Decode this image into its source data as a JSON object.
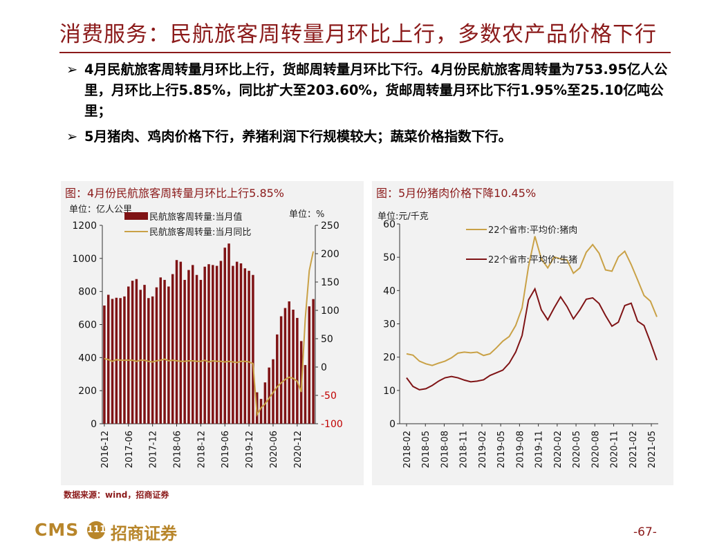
{
  "title": "消费服务：民航旅客周转量月环比上行，多数农产品价格下行",
  "bullets": [
    {
      "arrow": "➢",
      "text": "4月民航旅客周转量月环比上行，货邮周转量月环比下行。4月份民航旅客周转量为753.95亿人公里，月环比上行5.85%，同比扩大至203.60%，货邮周转量月环比下行1.95%至25.10亿吨公里；"
    },
    {
      "arrow": "➢",
      "text": "5月猪肉、鸡肉价格下行，养猪利润下行规模较大；蔬菜价格指数下行。"
    }
  ],
  "colors": {
    "accent": "#8B1A1A",
    "bar": "#7F1315",
    "line_gold": "#C9A146",
    "line_dark": "#7F1315",
    "panel_bg": "#F2F2F2",
    "logo": "#B8862B"
  },
  "source": "数据来源：wind，招商证券",
  "logo": {
    "cms": "CMS",
    "mark": "111",
    "cn": "招商证券"
  },
  "page_number": "-67-",
  "chart_data": [
    {
      "type": "bar+line",
      "title": "图：4月份民航旅客周转量月环比上行5.85%",
      "left_unit": "单位：亿人公里",
      "right_unit": "单位：%",
      "legend": [
        "民航旅客周转量:当月值",
        "民航旅客周转量:当月同比"
      ],
      "ylim": [
        0,
        1200
      ],
      "y_ticks": [
        0,
        200,
        400,
        600,
        800,
        1000,
        1200
      ],
      "y2lim": [
        -100,
        250
      ],
      "y2_ticks": [
        -100,
        -50,
        0,
        50,
        100,
        150,
        200,
        250
      ],
      "x_tick_labels": [
        "2016-12",
        "2017-06",
        "2017-12",
        "2018-06",
        "2018-12",
        "2019-06",
        "2019-12",
        "2020-06",
        "2020-12"
      ],
      "categories": [
        "2016-12",
        "2017-01",
        "2017-02",
        "2017-03",
        "2017-04",
        "2017-05",
        "2017-06",
        "2017-07",
        "2017-08",
        "2017-09",
        "2017-10",
        "2017-11",
        "2017-12",
        "2018-01",
        "2018-02",
        "2018-03",
        "2018-04",
        "2018-05",
        "2018-06",
        "2018-07",
        "2018-08",
        "2018-09",
        "2018-10",
        "2018-11",
        "2018-12",
        "2019-01",
        "2019-02",
        "2019-03",
        "2019-04",
        "2019-05",
        "2019-06",
        "2019-07",
        "2019-08",
        "2019-09",
        "2019-10",
        "2019-11",
        "2019-12",
        "2020-01",
        "2020-02",
        "2020-03",
        "2020-04",
        "2020-05",
        "2020-06",
        "2020-07",
        "2020-08",
        "2020-09",
        "2020-10",
        "2020-11",
        "2020-12",
        "2021-01",
        "2021-02",
        "2021-03",
        "2021-04"
      ],
      "series": [
        {
          "name": "民航旅客周转量:当月值",
          "values": [
            715,
            780,
            755,
            762,
            760,
            770,
            830,
            865,
            875,
            810,
            840,
            760,
            770,
            825,
            885,
            870,
            830,
            905,
            990,
            980,
            870,
            930,
            960,
            900,
            870,
            950,
            965,
            960,
            955,
            985,
            1065,
            1090,
            955,
            980,
            970,
            940,
            925,
            900,
            190,
            150,
            250,
            340,
            390,
            540,
            650,
            700,
            740,
            690,
            640,
            500,
            355,
            710,
            754
          ]
        },
        {
          "name": "民航旅客周转量:当月同比",
          "values": [
            15,
            13,
            10,
            13,
            12,
            12,
            12,
            12,
            10,
            12,
            12,
            10,
            9,
            11,
            12,
            14,
            11,
            12,
            11,
            10,
            10,
            11,
            11,
            10,
            10,
            12,
            9,
            11,
            10,
            10,
            9,
            10,
            9,
            8,
            10,
            10,
            9,
            6,
            -84,
            -72,
            -65,
            -55,
            -45,
            -35,
            -28,
            -22,
            -18,
            -20,
            -25,
            -44,
            85,
            170,
            204
          ]
        }
      ]
    },
    {
      "type": "line",
      "title": "图：5月份猪肉价格下降10.45%",
      "unit": "单位:元/千克",
      "legend": [
        "22个省市:平均价:猪肉",
        "22个省市:平均价:生猪"
      ],
      "ylim": [
        0,
        60
      ],
      "y_ticks": [
        0,
        10,
        20,
        30,
        40,
        50,
        60
      ],
      "x_tick_labels": [
        "2018-02",
        "2018-05",
        "2018-08",
        "2018-11",
        "2019-02",
        "2019-05",
        "2019-08",
        "2019-11",
        "2020-02",
        "2020-05",
        "2020-08",
        "2020-11",
        "2021-02",
        "2021-05"
      ],
      "series": [
        {
          "name": "22个省市:平均价:猪肉",
          "values": [
            21,
            20.6,
            18.8,
            18,
            17.5,
            18.2,
            18.8,
            19.8,
            21.2,
            21.5,
            21.3,
            21.5,
            20.5,
            21,
            22.8,
            24.8,
            26.2,
            29.5,
            34.8,
            47.2,
            56.3,
            49.5,
            46.8,
            50.1,
            49.5,
            49.2,
            45.2,
            46.8,
            51.5,
            53.8,
            51.2,
            46.2,
            45.8,
            50.1,
            51.8,
            47.8,
            43.2,
            38.5,
            36.8,
            32.1
          ]
        },
        {
          "name": "22个省市:平均价:生猪",
          "values": [
            13.8,
            11.2,
            10.2,
            10.5,
            11.5,
            12.8,
            13.8,
            14.2,
            13.8,
            13.1,
            12.6,
            12.8,
            13.2,
            14.5,
            15.3,
            16.1,
            18.2,
            21.5,
            26.5,
            37.2,
            40.5,
            34.2,
            31.2,
            34.8,
            38.1,
            35.2,
            31.5,
            34.2,
            37.4,
            37.8,
            36.1,
            32.5,
            29.3,
            30.5,
            35.5,
            36.2,
            30.8,
            29.5,
            24.5,
            19.1
          ]
        }
      ]
    }
  ]
}
